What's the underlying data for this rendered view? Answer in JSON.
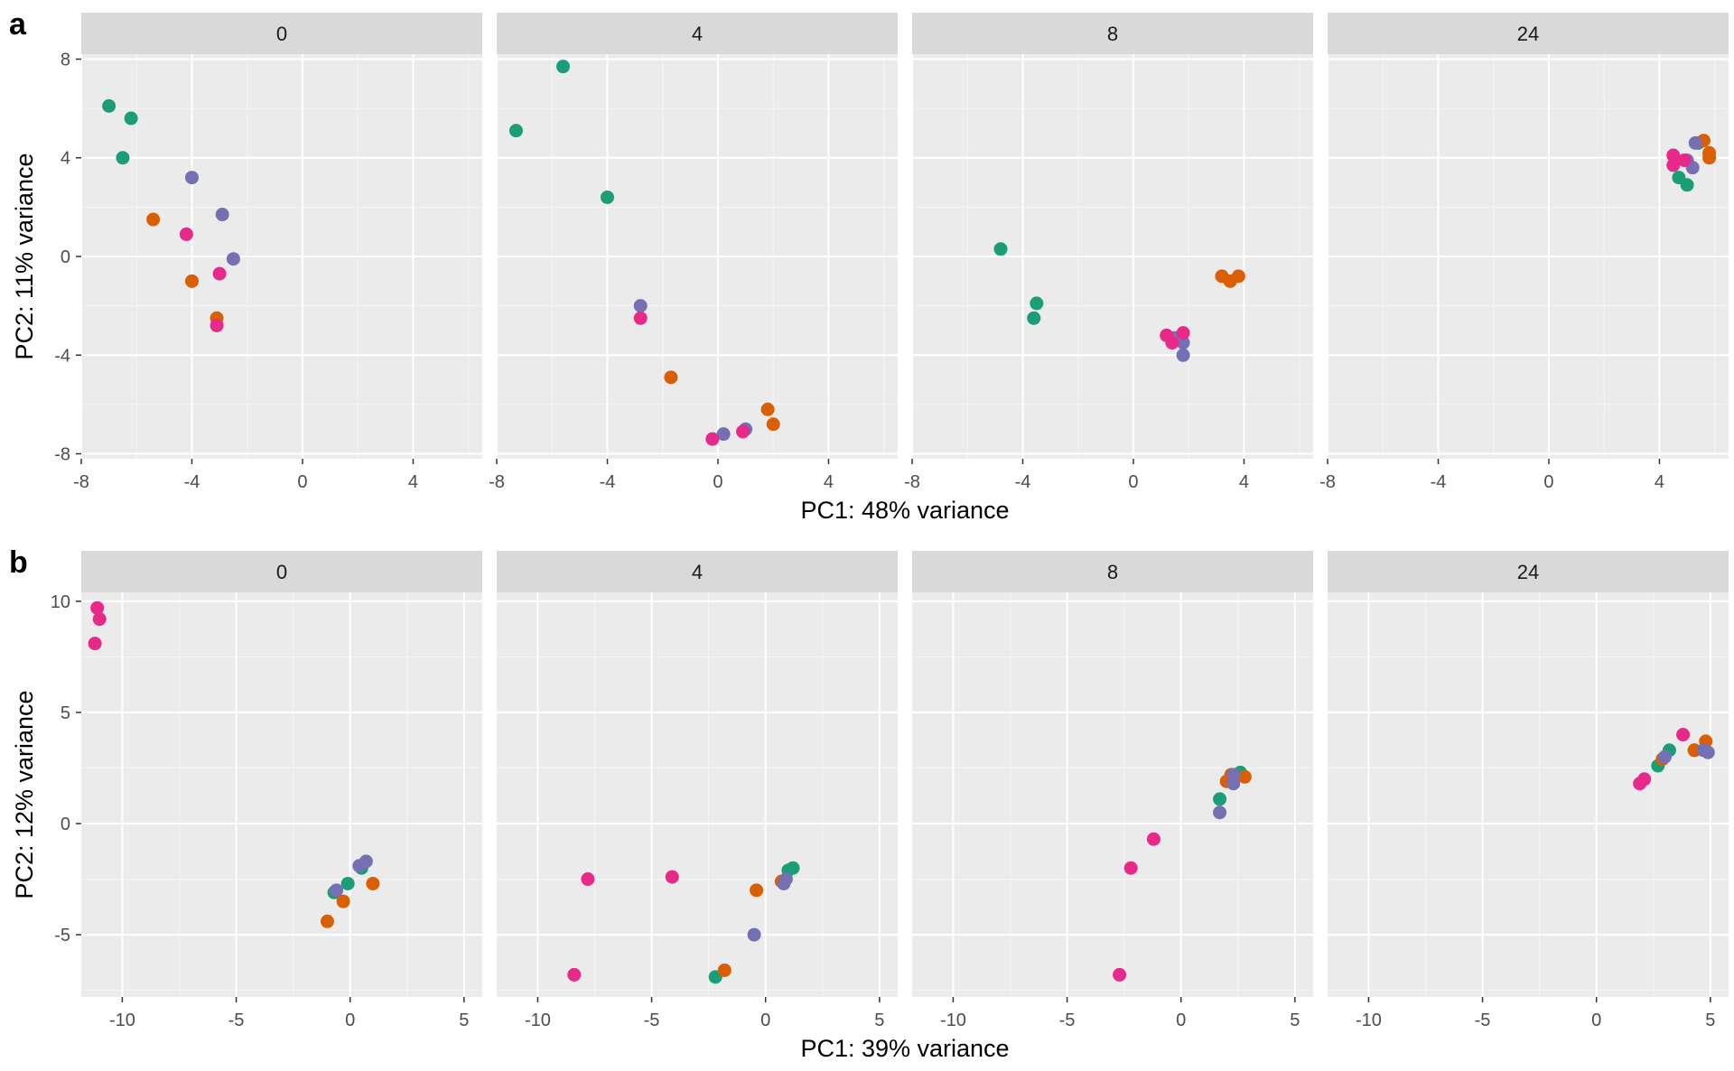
{
  "chart_data": [
    {
      "type": "scatter",
      "panel_label": "a",
      "facets": [
        "0",
        "4",
        "8",
        "24"
      ],
      "xlabel": "PC1: 48% variance",
      "ylabel": "PC2: 11% variance",
      "xlim": [
        -8,
        6.5
      ],
      "ylim": [
        -8.2,
        8.2
      ],
      "x_ticks": [
        -8,
        -4,
        0,
        4
      ],
      "y_ticks": [
        -8,
        -4,
        0,
        4,
        8
      ],
      "x_tick_labels": [
        "-8",
        "-4",
        "0",
        "4"
      ],
      "y_tick_labels": [
        "-8",
        "-4",
        "0",
        "4",
        "8"
      ],
      "grid": true,
      "colors": {
        "green": "#1B9E77",
        "orange": "#D95F02",
        "purple": "#7570B3",
        "magenta": "#E7298A"
      },
      "series": [
        {
          "color": "green",
          "points": [
            {
              "facet": "0",
              "x": -7.0,
              "y": 6.1
            },
            {
              "facet": "0",
              "x": -6.2,
              "y": 5.6
            },
            {
              "facet": "0",
              "x": -6.5,
              "y": 4.0
            },
            {
              "facet": "4",
              "x": -5.6,
              "y": 7.7
            },
            {
              "facet": "4",
              "x": -7.3,
              "y": 5.1
            },
            {
              "facet": "4",
              "x": -4.0,
              "y": 2.4
            },
            {
              "facet": "8",
              "x": -4.8,
              "y": 0.3
            },
            {
              "facet": "8",
              "x": -3.5,
              "y": -1.9
            },
            {
              "facet": "8",
              "x": -3.6,
              "y": -2.5
            },
            {
              "facet": "24",
              "x": 5.4,
              "y": 4.6
            },
            {
              "facet": "24",
              "x": 4.7,
              "y": 3.2
            },
            {
              "facet": "24",
              "x": 5.0,
              "y": 2.9
            }
          ]
        },
        {
          "color": "orange",
          "points": [
            {
              "facet": "0",
              "x": -5.4,
              "y": 1.5
            },
            {
              "facet": "0",
              "x": -4.0,
              "y": -1.0
            },
            {
              "facet": "0",
              "x": -3.1,
              "y": -2.5
            },
            {
              "facet": "4",
              "x": -1.7,
              "y": -4.9
            },
            {
              "facet": "4",
              "x": 1.8,
              "y": -6.2
            },
            {
              "facet": "4",
              "x": 2.0,
              "y": -6.8
            },
            {
              "facet": "8",
              "x": 3.2,
              "y": -0.8
            },
            {
              "facet": "8",
              "x": 3.5,
              "y": -1.0
            },
            {
              "facet": "8",
              "x": 3.8,
              "y": -0.8
            },
            {
              "facet": "24",
              "x": 5.6,
              "y": 4.7
            },
            {
              "facet": "24",
              "x": 5.8,
              "y": 4.2
            },
            {
              "facet": "24",
              "x": 5.8,
              "y": 4.0
            }
          ]
        },
        {
          "color": "purple",
          "points": [
            {
              "facet": "0",
              "x": -4.0,
              "y": 3.2
            },
            {
              "facet": "0",
              "x": -2.9,
              "y": 1.7
            },
            {
              "facet": "0",
              "x": -2.5,
              "y": -0.1
            },
            {
              "facet": "4",
              "x": -2.8,
              "y": -2.0
            },
            {
              "facet": "4",
              "x": 0.2,
              "y": -7.2
            },
            {
              "facet": "4",
              "x": 1.0,
              "y": -7.0
            },
            {
              "facet": "8",
              "x": 1.8,
              "y": -3.5
            },
            {
              "facet": "8",
              "x": 1.8,
              "y": -4.0
            },
            {
              "facet": "8",
              "x": 1.5,
              "y": -3.3
            },
            {
              "facet": "24",
              "x": 5.3,
              "y": 4.6
            },
            {
              "facet": "24",
              "x": 5.2,
              "y": 3.6
            },
            {
              "facet": "24",
              "x": 5.0,
              "y": 3.9
            }
          ]
        },
        {
          "color": "magenta",
          "points": [
            {
              "facet": "0",
              "x": -4.2,
              "y": 0.9
            },
            {
              "facet": "0",
              "x": -3.0,
              "y": -0.7
            },
            {
              "facet": "0",
              "x": -3.1,
              "y": -2.8
            },
            {
              "facet": "4",
              "x": -2.8,
              "y": -2.5
            },
            {
              "facet": "4",
              "x": -0.2,
              "y": -7.4
            },
            {
              "facet": "4",
              "x": 0.9,
              "y": -7.1
            },
            {
              "facet": "8",
              "x": 1.2,
              "y": -3.2
            },
            {
              "facet": "8",
              "x": 1.4,
              "y": -3.5
            },
            {
              "facet": "8",
              "x": 1.8,
              "y": -3.1
            },
            {
              "facet": "24",
              "x": 4.5,
              "y": 4.1
            },
            {
              "facet": "24",
              "x": 4.9,
              "y": 3.9
            },
            {
              "facet": "24",
              "x": 4.5,
              "y": 3.7
            }
          ]
        }
      ]
    },
    {
      "type": "scatter",
      "panel_label": "b",
      "facets": [
        "0",
        "4",
        "8",
        "24"
      ],
      "xlabel": "PC1: 39% variance",
      "ylabel": "PC2: 12% variance",
      "xlim": [
        -11.8,
        5.8
      ],
      "ylim": [
        -7.8,
        10.4
      ],
      "x_ticks": [
        -10,
        -5,
        0,
        5
      ],
      "y_ticks": [
        -5,
        0,
        5,
        10
      ],
      "x_tick_labels": [
        "-10",
        "-5",
        "0",
        "5"
      ],
      "y_tick_labels": [
        "-5",
        "0",
        "5",
        "10"
      ],
      "grid": true,
      "colors": {
        "green": "#1B9E77",
        "orange": "#D95F02",
        "purple": "#7570B3",
        "magenta": "#E7298A"
      },
      "series": [
        {
          "color": "green",
          "points": [
            {
              "facet": "0",
              "x": -0.7,
              "y": -3.1
            },
            {
              "facet": "0",
              "x": -0.1,
              "y": -2.7
            },
            {
              "facet": "0",
              "x": 0.5,
              "y": -2.0
            },
            {
              "facet": "4",
              "x": -2.2,
              "y": -6.9
            },
            {
              "facet": "4",
              "x": 1.0,
              "y": -2.1
            },
            {
              "facet": "4",
              "x": 1.2,
              "y": -2.0
            },
            {
              "facet": "8",
              "x": 2.6,
              "y": 2.3
            },
            {
              "facet": "8",
              "x": 1.7,
              "y": 1.1
            },
            {
              "facet": "8",
              "x": 2.4,
              "y": 2.2
            },
            {
              "facet": "24",
              "x": 3.2,
              "y": 3.3
            },
            {
              "facet": "24",
              "x": 2.7,
              "y": 2.6
            },
            {
              "facet": "24",
              "x": 4.3,
              "y": 3.3
            }
          ]
        },
        {
          "color": "orange",
          "points": [
            {
              "facet": "0",
              "x": -1.0,
              "y": -4.4
            },
            {
              "facet": "0",
              "x": -0.3,
              "y": -3.5
            },
            {
              "facet": "0",
              "x": 1.0,
              "y": -2.7
            },
            {
              "facet": "4",
              "x": -1.8,
              "y": -6.6
            },
            {
              "facet": "4",
              "x": -0.4,
              "y": -3.0
            },
            {
              "facet": "4",
              "x": 0.7,
              "y": -2.6
            },
            {
              "facet": "8",
              "x": 2.8,
              "y": 2.1
            },
            {
              "facet": "8",
              "x": 2.2,
              "y": 2.2
            },
            {
              "facet": "8",
              "x": 2.0,
              "y": 1.9
            },
            {
              "facet": "24",
              "x": 2.9,
              "y": 2.9
            },
            {
              "facet": "24",
              "x": 4.8,
              "y": 3.7
            },
            {
              "facet": "24",
              "x": 4.3,
              "y": 3.3
            }
          ]
        },
        {
          "color": "purple",
          "points": [
            {
              "facet": "0",
              "x": 0.4,
              "y": -1.9
            },
            {
              "facet": "0",
              "x": 0.7,
              "y": -1.7
            },
            {
              "facet": "0",
              "x": -0.6,
              "y": -3.0
            },
            {
              "facet": "4",
              "x": -0.5,
              "y": -5.0
            },
            {
              "facet": "4",
              "x": 0.9,
              "y": -2.5
            },
            {
              "facet": "4",
              "x": 0.8,
              "y": -2.7
            },
            {
              "facet": "8",
              "x": 1.7,
              "y": 0.5
            },
            {
              "facet": "8",
              "x": 2.3,
              "y": 1.8
            },
            {
              "facet": "8",
              "x": 2.3,
              "y": 2.2
            },
            {
              "facet": "24",
              "x": 4.9,
              "y": 3.2
            },
            {
              "facet": "24",
              "x": 3.0,
              "y": 3.0
            },
            {
              "facet": "24",
              "x": 4.7,
              "y": 3.3
            }
          ]
        },
        {
          "color": "magenta",
          "points": [
            {
              "facet": "0",
              "x": -11.2,
              "y": 8.1
            },
            {
              "facet": "0",
              "x": -11.0,
              "y": 9.2
            },
            {
              "facet": "0",
              "x": -11.1,
              "y": 9.7
            },
            {
              "facet": "4",
              "x": -8.4,
              "y": -6.8
            },
            {
              "facet": "4",
              "x": -7.8,
              "y": -2.5
            },
            {
              "facet": "4",
              "x": -4.1,
              "y": -2.4
            },
            {
              "facet": "8",
              "x": -2.7,
              "y": -6.8
            },
            {
              "facet": "8",
              "x": -2.2,
              "y": -2.0
            },
            {
              "facet": "8",
              "x": -1.2,
              "y": -0.7
            },
            {
              "facet": "24",
              "x": 1.9,
              "y": 1.8
            },
            {
              "facet": "24",
              "x": 2.1,
              "y": 2.0
            },
            {
              "facet": "24",
              "x": 3.8,
              "y": 4.0
            }
          ]
        }
      ]
    }
  ]
}
